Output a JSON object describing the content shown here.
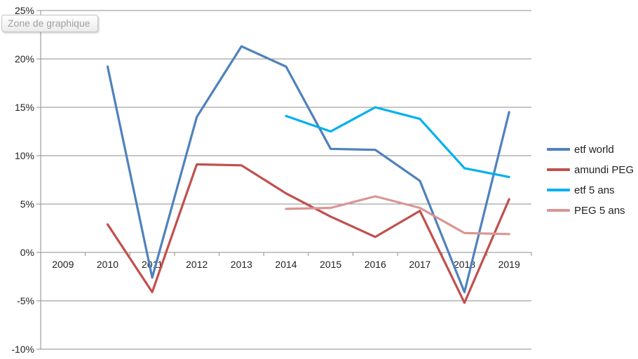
{
  "tooltip": {
    "label": "Zone de graphique"
  },
  "colors": {
    "background": "#FFFFFF",
    "gridline": "#8E8E8E",
    "axis": "#8E8E8E",
    "tick_text": "#1F1F1F",
    "tooltip_text": "#A0A0A0",
    "tooltip_border": "#C3C3C3"
  },
  "chart_data": {
    "type": "line",
    "title": "",
    "xlabel": "",
    "ylabel": "",
    "categories": [
      "2009",
      "2010",
      "2011",
      "2012",
      "2013",
      "2014",
      "2015",
      "2016",
      "2017",
      "2018",
      "2019"
    ],
    "series": [
      {
        "name": "etf world",
        "color": "#4F81BD",
        "values": [
          null,
          19.2,
          -2.6,
          14.0,
          21.3,
          19.2,
          10.7,
          10.6,
          7.4,
          -4.1,
          14.5
        ]
      },
      {
        "name": "amundi PEG",
        "color": "#C0504D",
        "values": [
          null,
          2.9,
          -4.1,
          9.1,
          9.0,
          6.1,
          3.7,
          1.6,
          4.3,
          -5.2,
          5.5
        ]
      },
      {
        "name": "etf 5 ans",
        "color": "#00B0F0",
        "values": [
          null,
          null,
          null,
          null,
          null,
          14.1,
          12.5,
          15.0,
          13.8,
          8.7,
          7.8
        ]
      },
      {
        "name": "PEG 5 ans",
        "color": "#D99694",
        "values": [
          null,
          null,
          null,
          null,
          null,
          4.5,
          4.6,
          5.8,
          4.6,
          2.0,
          1.9
        ]
      }
    ],
    "ylim": [
      -10,
      25
    ],
    "y_ticks": [
      {
        "value": 25,
        "label": "25%"
      },
      {
        "value": 20,
        "label": "20%"
      },
      {
        "value": 15,
        "label": "15%"
      },
      {
        "value": 10,
        "label": "10%"
      },
      {
        "value": 5,
        "label": "5%"
      },
      {
        "value": 0,
        "label": "0%"
      },
      {
        "value": -5,
        "label": "-5%"
      },
      {
        "value": -10,
        "label": "-10%"
      }
    ],
    "grid": true,
    "legend_position": "right"
  }
}
